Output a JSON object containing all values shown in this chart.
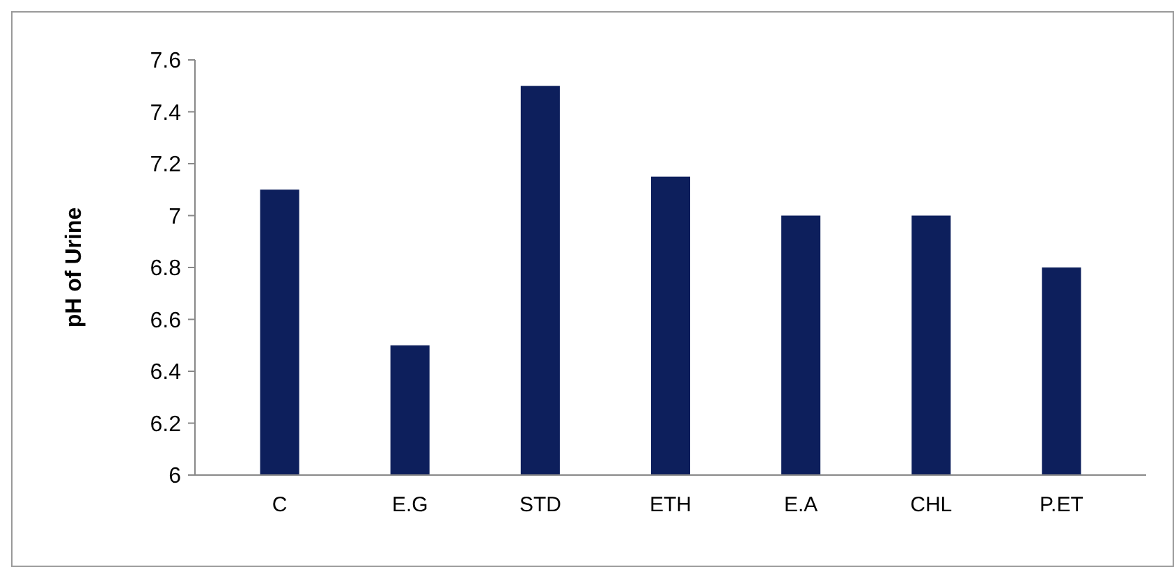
{
  "chart_data": {
    "type": "bar",
    "ylabel": "pH of Urine",
    "categories": [
      "C",
      "E.G",
      "STD",
      "ETH",
      "E.A",
      "CHL",
      "P.ET"
    ],
    "values": [
      7.1,
      6.5,
      7.5,
      7.15,
      7.0,
      7.0,
      6.8
    ],
    "color": "#0d1f5c",
    "ylim": [
      6,
      7.6
    ],
    "yticks": [
      {
        "value": 6,
        "label": "6"
      },
      {
        "value": 6.2,
        "label": "6.2"
      },
      {
        "value": 6.4,
        "label": "6.4"
      },
      {
        "value": 6.6,
        "label": "6.6"
      },
      {
        "value": 6.8,
        "label": "6.8"
      },
      {
        "value": 7,
        "label": "7"
      },
      {
        "value": 7.2,
        "label": "7.2"
      },
      {
        "value": 7.4,
        "label": "7.4"
      },
      {
        "value": 7.6,
        "label": "7.6"
      }
    ],
    "grid": false
  }
}
